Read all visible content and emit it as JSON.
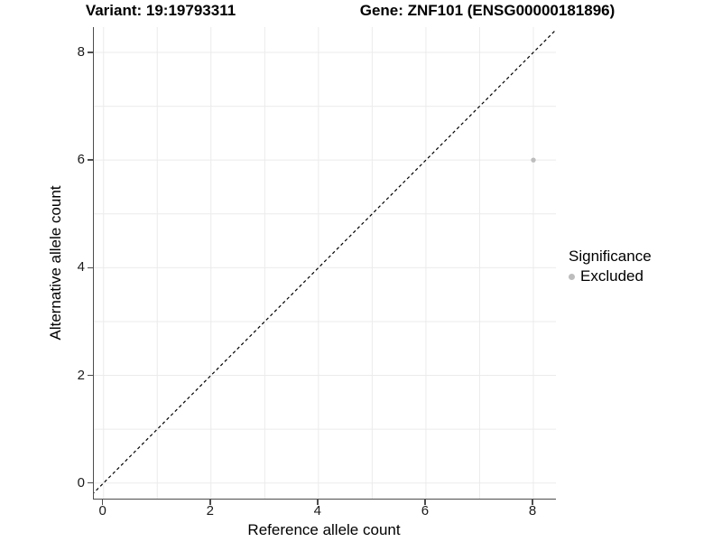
{
  "figure": {
    "title_variant": "Variant: 19:19793311",
    "title_gene": "Gene: ZNF101 (ENSG00000181896)"
  },
  "chart_data": {
    "type": "scatter",
    "titles": [
      "Variant: 19:19793311",
      "Gene: ZNF101 (ENSG00000181896)"
    ],
    "xlabel": "Reference allele count",
    "ylabel": "Alternative allele count",
    "xlim": [
      -0.18,
      8.42
    ],
    "ylim": [
      -0.29,
      8.47
    ],
    "xticks": [
      0,
      2,
      4,
      6,
      8
    ],
    "yticks": [
      0,
      2,
      4,
      6,
      8
    ],
    "grid": {
      "on": true,
      "interval": 1,
      "color": "#ebebeb"
    },
    "reference_line": {
      "type": "identity-diagonal",
      "equation": "y = x",
      "style": "dashed",
      "color": "#000000"
    },
    "series": [
      {
        "name": "Excluded",
        "color": "#bdbdbd",
        "points": [
          {
            "x": 8,
            "y": 6
          }
        ]
      }
    ],
    "legend": {
      "title": "Significance",
      "position": "right",
      "entries": [
        {
          "label": "Excluded",
          "color": "#bdbdbd"
        }
      ]
    }
  },
  "colors": {
    "background": "#ffffff",
    "axis_line": "#4d4d4d",
    "grid_line": "#ebebeb",
    "point": "#bdbdbd",
    "text": "#000000"
  }
}
